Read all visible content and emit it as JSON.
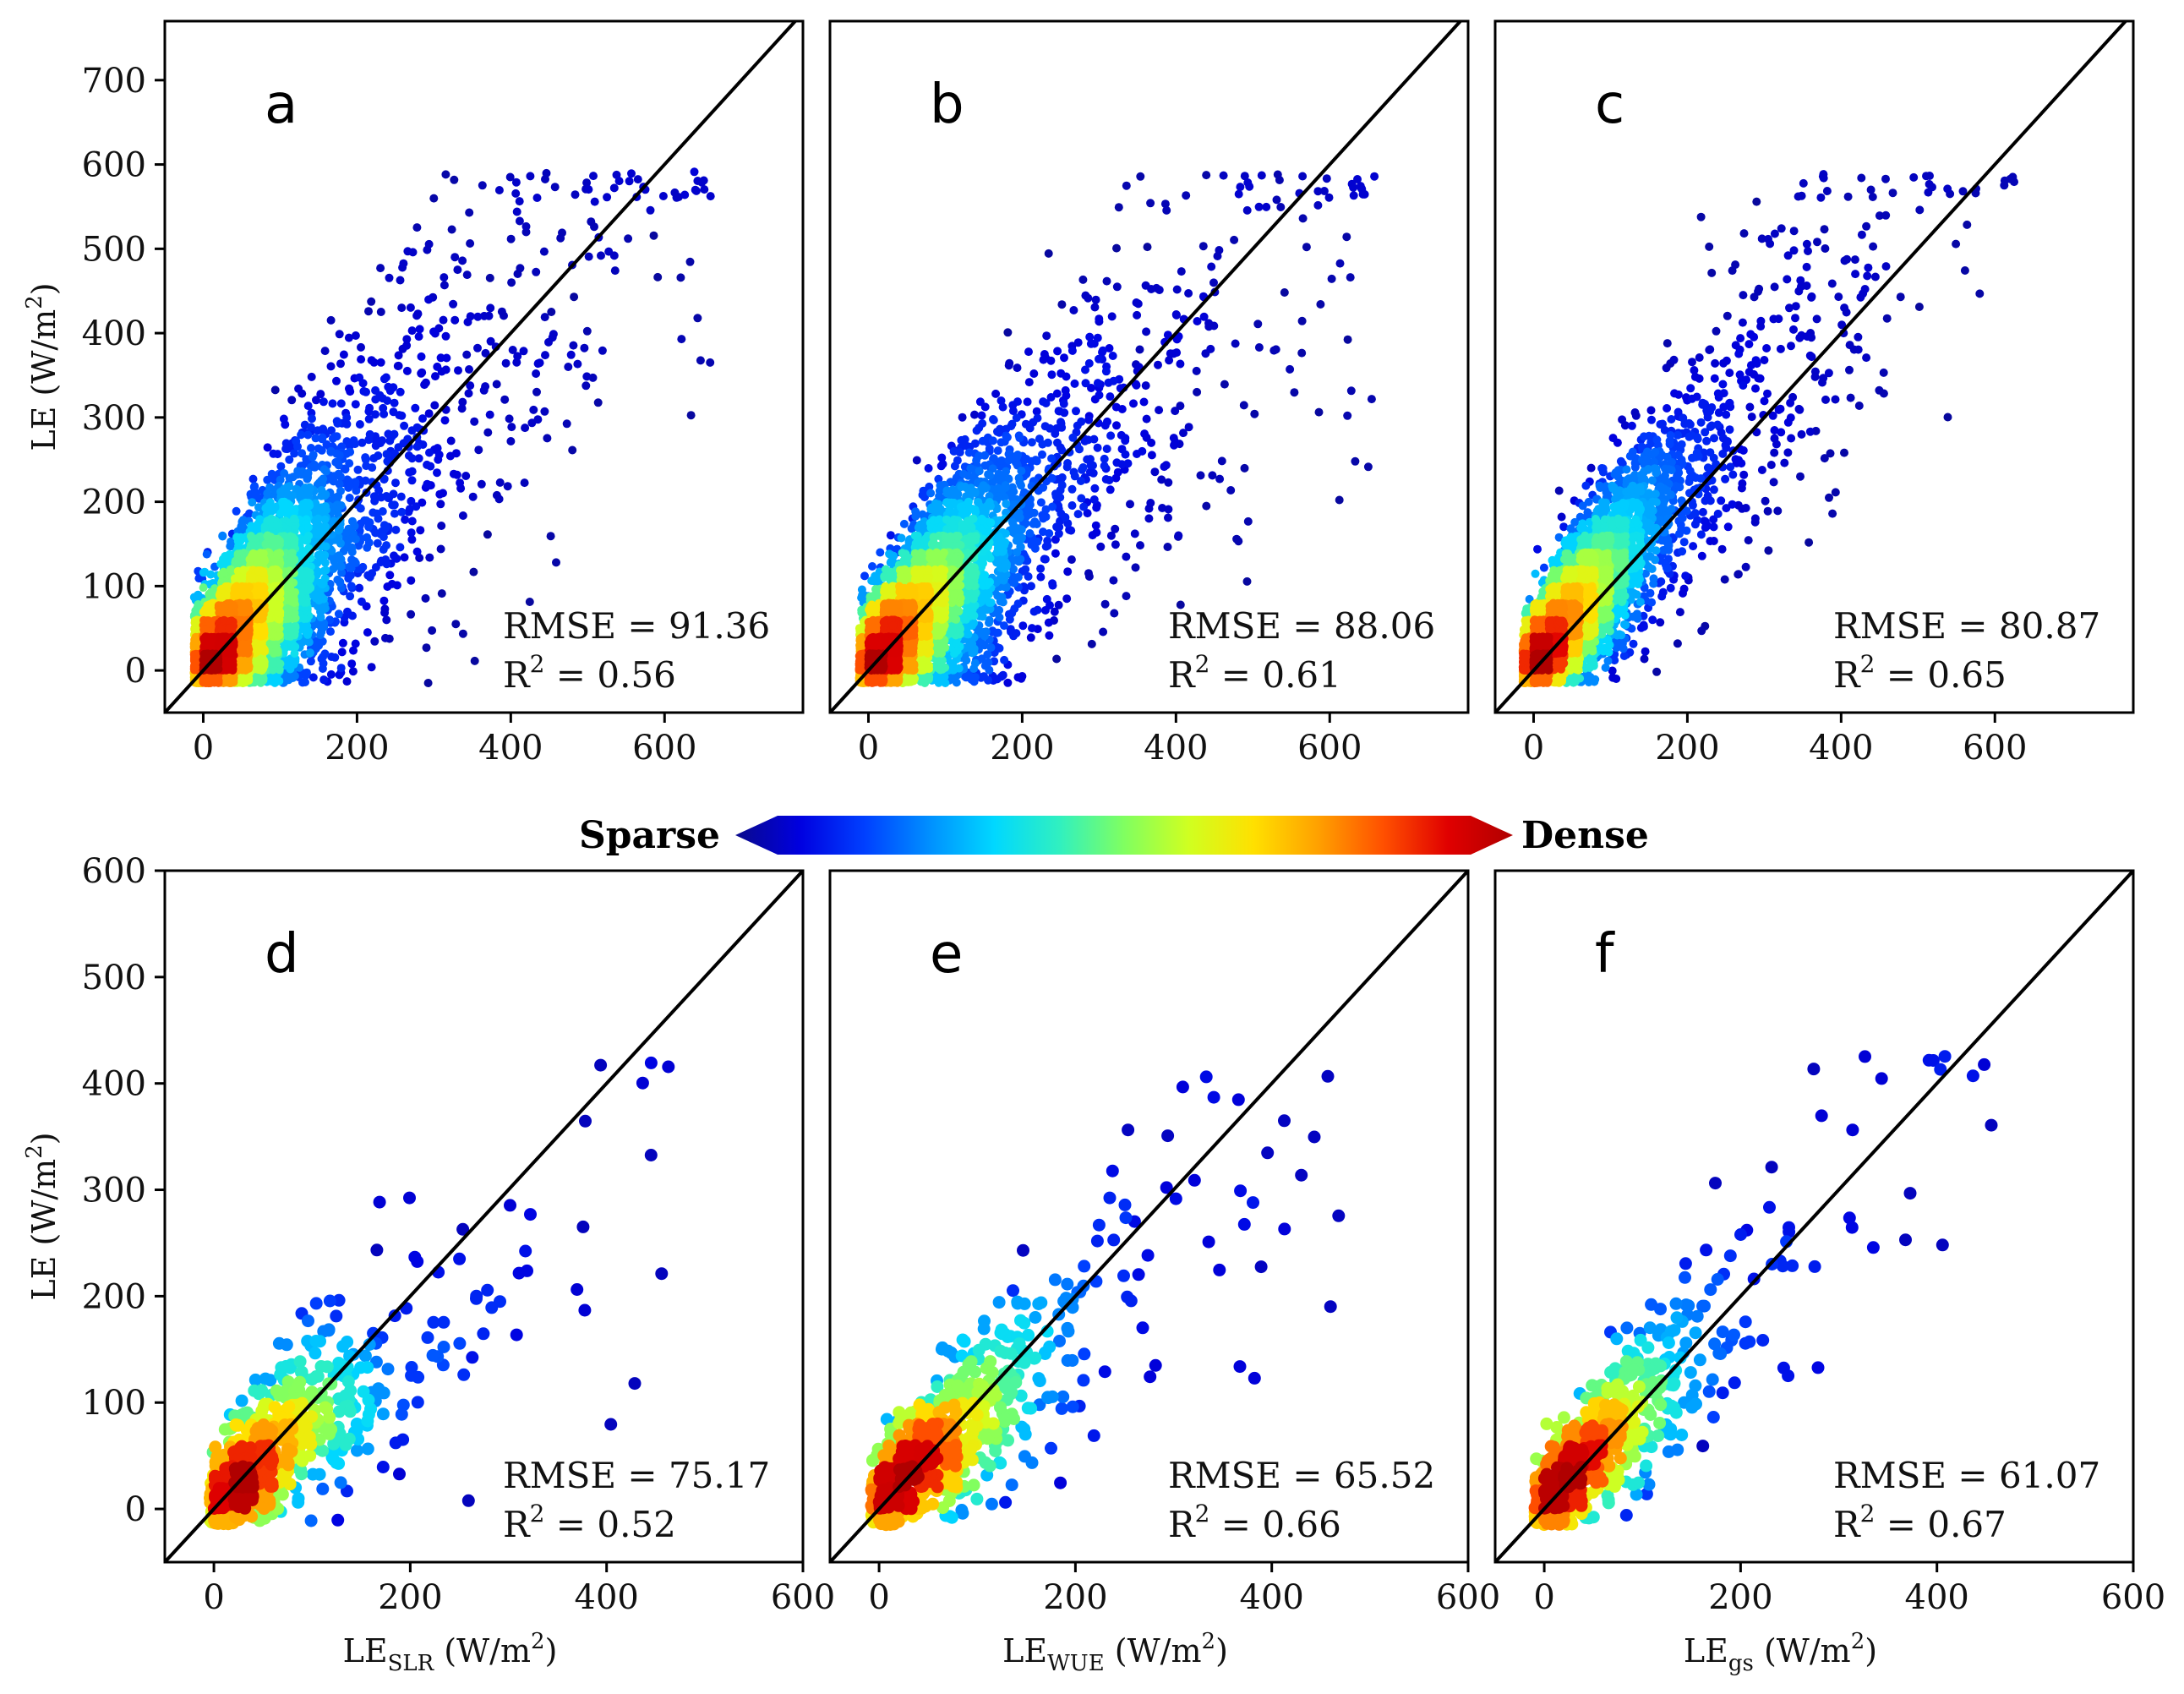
{
  "figure": {
    "colorbar": {
      "left_label": "Sparse",
      "right_label": "Dense",
      "colors": [
        "#0a0a8c",
        "#0000e0",
        "#0040ff",
        "#0090ff",
        "#00d8ff",
        "#30f0c0",
        "#80ff60",
        "#d0ff20",
        "#ffe000",
        "#ffa000",
        "#ff5000",
        "#e00000",
        "#b00000"
      ]
    }
  },
  "chart_data": [
    {
      "type": "scatter",
      "panel": "a",
      "xlabel": "",
      "ylabel": "LE (W/m²)",
      "ylabel_main": "LE (W/m",
      "ylabel_sup": "2",
      "ylabel_end": ")",
      "xlim": [
        -50,
        780
      ],
      "ylim": [
        -50,
        770
      ],
      "xticks": [
        0,
        200,
        400,
        600
      ],
      "yticks": [
        0,
        100,
        200,
        300,
        400,
        500,
        600,
        700
      ],
      "xtick_labels": [
        "0",
        "200",
        "400",
        "600"
      ],
      "ytick_labels": [
        "0",
        "100",
        "200",
        "300",
        "400",
        "500",
        "600",
        "700"
      ],
      "rmse_text": "RMSE = 91.36",
      "r2_prefix": "R",
      "r2_sup": "2",
      "r2_text": " = 0.56",
      "n_points": 5200,
      "center": [
        40,
        60
      ],
      "spread": 95,
      "noise": 80,
      "slope": 0.92
    },
    {
      "type": "scatter",
      "panel": "b",
      "xlabel": "",
      "ylabel": "",
      "xlim": [
        -50,
        780
      ],
      "ylim": [
        -50,
        770
      ],
      "xticks": [
        0,
        200,
        400,
        600
      ],
      "yticks": [],
      "xtick_labels": [
        "0",
        "200",
        "400",
        "600"
      ],
      "ytick_labels": [],
      "rmse_text": "RMSE = 88.06",
      "r2_prefix": "R",
      "r2_sup": "2",
      "r2_text": " = 0.61",
      "n_points": 5200,
      "center": [
        40,
        55
      ],
      "spread": 100,
      "noise": 75,
      "slope": 0.88
    },
    {
      "type": "scatter",
      "panel": "c",
      "xlabel": "",
      "ylabel": "",
      "xlim": [
        -50,
        780
      ],
      "ylim": [
        -50,
        770
      ],
      "xticks": [
        0,
        200,
        400,
        600
      ],
      "yticks": [],
      "xtick_labels": [
        "0",
        "200",
        "400",
        "600"
      ],
      "ytick_labels": [],
      "rmse_text": "RMSE = 80.87",
      "r2_prefix": "R",
      "r2_sup": "2",
      "r2_text": " = 0.65",
      "n_points": 5200,
      "center": [
        30,
        60
      ],
      "spread": 85,
      "noise": 65,
      "slope": 1.1
    },
    {
      "type": "scatter",
      "panel": "d",
      "xlabel": "LE_SLR (W/m²)",
      "xlabel_main": "LE",
      "xlabel_sub": "SLR",
      "xlabel_unit": " (W/m",
      "xlabel_sup": "2",
      "xlabel_end": ")",
      "ylabel": "LE (W/m²)",
      "ylabel_main": "LE (W/m",
      "ylabel_sup": "2",
      "ylabel_end": ")",
      "xlim": [
        -50,
        600
      ],
      "ylim": [
        -50,
        600
      ],
      "xticks": [
        0,
        200,
        400,
        600
      ],
      "yticks": [
        0,
        100,
        200,
        300,
        400,
        500,
        600
      ],
      "xtick_labels": [
        "0",
        "200",
        "400",
        "600"
      ],
      "ytick_labels": [
        "0",
        "100",
        "200",
        "300",
        "400",
        "500",
        "600"
      ],
      "rmse_text": "RMSE = 75.17",
      "r2_prefix": "R",
      "r2_sup": "2",
      "r2_text": " = 0.52",
      "n_points": 700,
      "center": [
        80,
        75
      ],
      "spread": 80,
      "noise": 55,
      "slope": 0.75
    },
    {
      "type": "scatter",
      "panel": "e",
      "xlabel": "LE_WUE (W/m²)",
      "xlabel_main": "LE",
      "xlabel_sub": "WUE",
      "xlabel_unit": " (W/m",
      "xlabel_sup": "2",
      "xlabel_end": ")",
      "ylabel": "",
      "xlim": [
        -50,
        600
      ],
      "ylim": [
        -50,
        600
      ],
      "xticks": [
        0,
        200,
        400,
        600
      ],
      "yticks": [],
      "xtick_labels": [
        "0",
        "200",
        "400",
        "600"
      ],
      "ytick_labels": [],
      "rmse_text": "RMSE = 65.52",
      "r2_prefix": "R",
      "r2_sup": "2",
      "r2_text": " = 0.66",
      "n_points": 700,
      "center": [
        60,
        70
      ],
      "spread": 95,
      "noise": 50,
      "slope": 0.78
    },
    {
      "type": "scatter",
      "panel": "f",
      "xlabel": "LE_gs (W/m²)",
      "xlabel_main": "LE",
      "xlabel_sub": "gs",
      "xlabel_unit": " (W/m",
      "xlabel_sup": "2",
      "xlabel_end": ")",
      "ylabel": "",
      "xlim": [
        -50,
        600
      ],
      "ylim": [
        -50,
        600
      ],
      "xticks": [
        0,
        200,
        400,
        600
      ],
      "yticks": [],
      "xtick_labels": [
        "0",
        "200",
        "400",
        "600"
      ],
      "ytick_labels": [],
      "rmse_text": "RMSE = 61.07",
      "r2_prefix": "R",
      "r2_sup": "2",
      "r2_text": " = 0.67",
      "n_points": 700,
      "center": [
        50,
        65
      ],
      "spread": 80,
      "noise": 48,
      "slope": 0.95
    }
  ]
}
